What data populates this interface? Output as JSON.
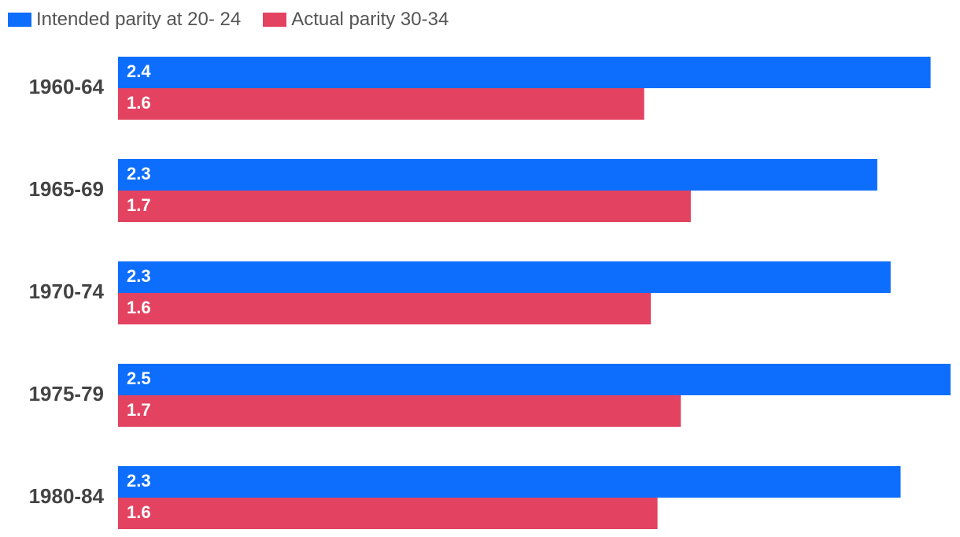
{
  "legend": {
    "position": "top-left",
    "items": [
      {
        "label": "Intended parity at 20- 24",
        "color": "#0d6efd"
      },
      {
        "label": "Actual parity 30-34",
        "color": "#e34361"
      }
    ]
  },
  "chart_data": {
    "type": "bar",
    "orientation": "horizontal",
    "title": "",
    "xlabel": "",
    "ylabel": "",
    "grid": false,
    "categories": [
      "1960-64",
      "1965-69",
      "1970-74",
      "1975-79",
      "1980-84"
    ],
    "series": [
      {
        "name": "Intended parity at 20- 24",
        "color": "#0d6efd",
        "values": [
          2.44,
          2.28,
          2.32,
          2.5,
          2.35
        ],
        "labels": [
          "2.4",
          "2.3",
          "2.3",
          "2.5",
          "2.3"
        ]
      },
      {
        "name": "Actual parity 30-34",
        "color": "#e34361",
        "values": [
          1.58,
          1.72,
          1.6,
          1.69,
          1.62
        ],
        "labels": [
          "1.6",
          "1.7",
          "1.6",
          "1.7",
          "1.6"
        ]
      }
    ],
    "xlim": [
      0,
      2.5
    ]
  }
}
